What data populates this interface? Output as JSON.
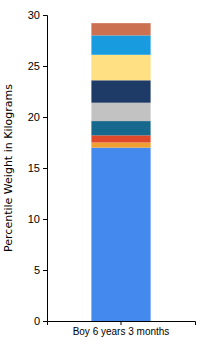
{
  "chart_data": {
    "type": "bar",
    "stacked": true,
    "ylabel": "Percentile Weight in Kilograms",
    "categories": [
      "Boy 6 years 3 months"
    ],
    "series": [
      {
        "color": "#4489ee",
        "values": [
          17.0
        ]
      },
      {
        "color": "#f0a030",
        "values": [
          0.5
        ]
      },
      {
        "color": "#e0482c",
        "values": [
          0.7
        ]
      },
      {
        "color": "#16688c",
        "values": [
          1.4
        ]
      },
      {
        "color": "#c2c2c2",
        "values": [
          1.8
        ]
      },
      {
        "color": "#1e3a66",
        "values": [
          2.2
        ]
      },
      {
        "color": "#ffe082",
        "values": [
          2.5
        ]
      },
      {
        "color": "#199cdf",
        "values": [
          1.9
        ]
      },
      {
        "color": "#cc7052",
        "values": [
          1.2
        ]
      }
    ],
    "ylim": [
      0,
      30
    ],
    "yticks": [
      0,
      5,
      10,
      15,
      20,
      25,
      30
    ]
  }
}
